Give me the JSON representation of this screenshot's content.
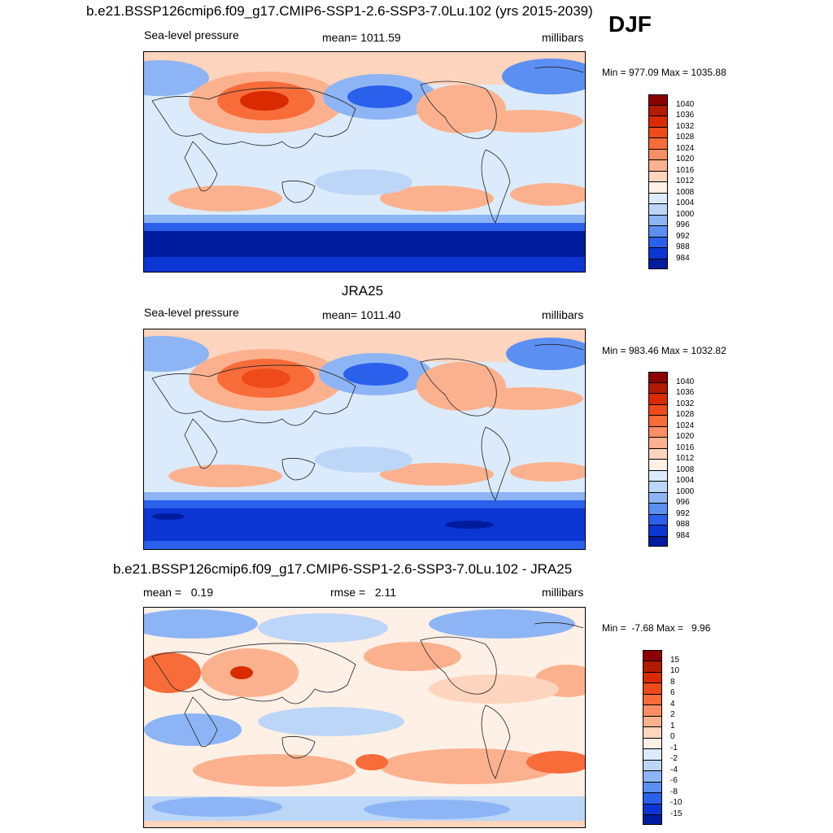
{
  "figure": {
    "season": "DJF",
    "panels": [
      {
        "title": "b.e21.BSSP126cmip6.f09_g17.CMIP6-SSP1-2.6-SSP3-7.0Lu.102 (yrs 2015-2039)",
        "left_label": "Sea-level pressure",
        "center_label": "mean= 1011.59",
        "right_label": "millibars",
        "minmax": "Min = 977.09 Max = 1035.88"
      },
      {
        "title": "JRA25",
        "left_label": "Sea-level pressure",
        "center_label": "mean= 1011.40",
        "right_label": "millibars",
        "minmax": "Min = 983.46 Max = 1032.82"
      },
      {
        "title": "b.e21.BSSP126cmip6.f09_g17.CMIP6-SSP1-2.6-SSP3-7.0Lu.102 - JRA25",
        "left_label": "mean =   0.19",
        "center_label": "rmse =   2.11",
        "right_label": "millibars",
        "minmax": "Min =  -7.68 Max =   9.96"
      }
    ]
  },
  "colorbars": {
    "pressure": {
      "labels": [
        "1040",
        "1036",
        "1032",
        "1028",
        "1024",
        "1020",
        "1016",
        "1012",
        "1008",
        "1004",
        "1000",
        "996",
        "992",
        "988",
        "984"
      ],
      "colors": [
        "#8b0000",
        "#b31a00",
        "#d92a00",
        "#ee4a1a",
        "#f86c3a",
        "#fb8f63",
        "#fcb18e",
        "#fdd4bd",
        "#fff0e6",
        "#dcebfb",
        "#bcd6f7",
        "#8db5f5",
        "#5b8ff2",
        "#2a60ec",
        "#0c36d4",
        "#001c9e"
      ]
    },
    "difference": {
      "labels": [
        "15",
        "10",
        "8",
        "6",
        "4",
        "2",
        "1",
        "0",
        "-1",
        "-2",
        "-4",
        "-6",
        "-8",
        "-10",
        "-15"
      ],
      "colors": [
        "#8b0000",
        "#b31a00",
        "#d92a00",
        "#ee4a1a",
        "#f86c3a",
        "#fb8f63",
        "#fcb18e",
        "#fdd4bd",
        "#fff0e6",
        "#dcebfb",
        "#bcd6f7",
        "#8db5f5",
        "#5b8ff2",
        "#2a60ec",
        "#0c36d4",
        "#001c9e"
      ]
    }
  }
}
